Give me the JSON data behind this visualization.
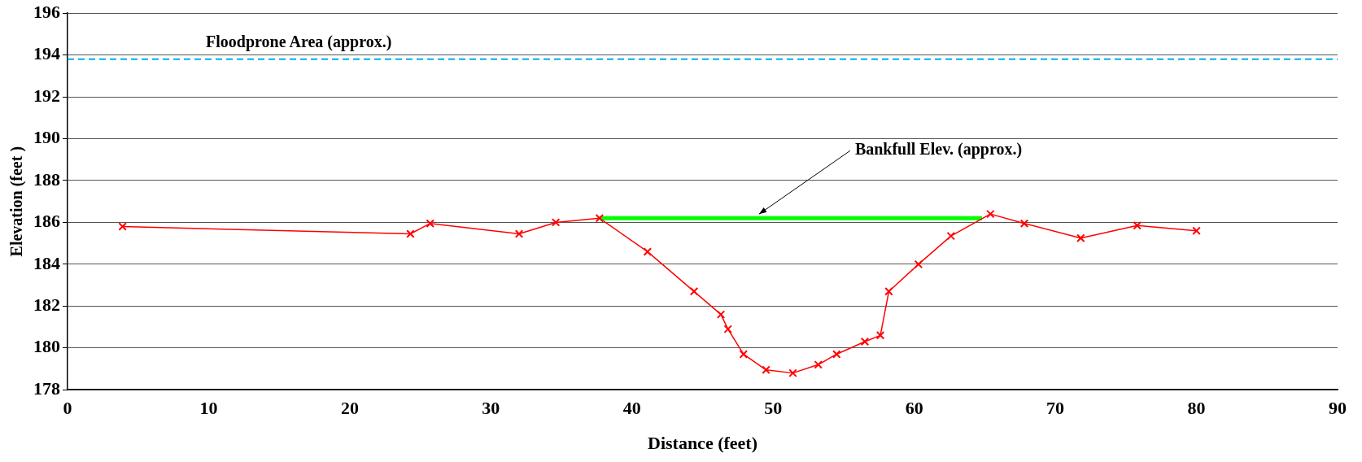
{
  "chart_data": {
    "type": "line",
    "xlabel": "Distance (feet)",
    "ylabel": "Elevation (feet )",
    "xlim": [
      0,
      90
    ],
    "xticks": [
      0,
      10,
      20,
      30,
      40,
      50,
      60,
      70,
      80,
      90
    ],
    "ylim": [
      178,
      196
    ],
    "yticks": [
      178,
      180,
      182,
      184,
      186,
      188,
      190,
      192,
      194,
      196
    ],
    "grid": "y",
    "legend": false,
    "marker": "cross",
    "series": [
      {
        "color": "#ff0000",
        "x": [
          3.9,
          24.3,
          25.7,
          32.0,
          34.6,
          37.7,
          41.1,
          44.4,
          46.3,
          46.8,
          47.9,
          49.5,
          51.4,
          53.2,
          54.5,
          56.5,
          57.6,
          58.2,
          60.3,
          62.6,
          65.4,
          67.8,
          71.8,
          75.8,
          80.0
        ],
        "values": [
          185.8,
          185.45,
          185.95,
          185.45,
          186.0,
          186.2,
          184.6,
          182.7,
          181.6,
          180.9,
          179.7,
          178.95,
          178.8,
          179.2,
          179.7,
          180.3,
          180.6,
          182.7,
          184.0,
          185.35,
          186.4,
          185.95,
          185.25,
          185.85,
          185.6
        ]
      },
      {
        "color": "#00ff00",
        "marker": "none",
        "x": [
          37.7,
          64.8
        ],
        "values": [
          186.2,
          186.2
        ]
      }
    ],
    "ref_lines": [
      {
        "axis": "y",
        "value": 193.8,
        "label": "Floodprone Area (approx.)",
        "color": "#00b0f0",
        "line_style": "dashed"
      }
    ],
    "annotations": [
      {
        "text": "Bankfull Elev. (approx.)",
        "x": 49,
        "y": 186.2
      }
    ]
  }
}
